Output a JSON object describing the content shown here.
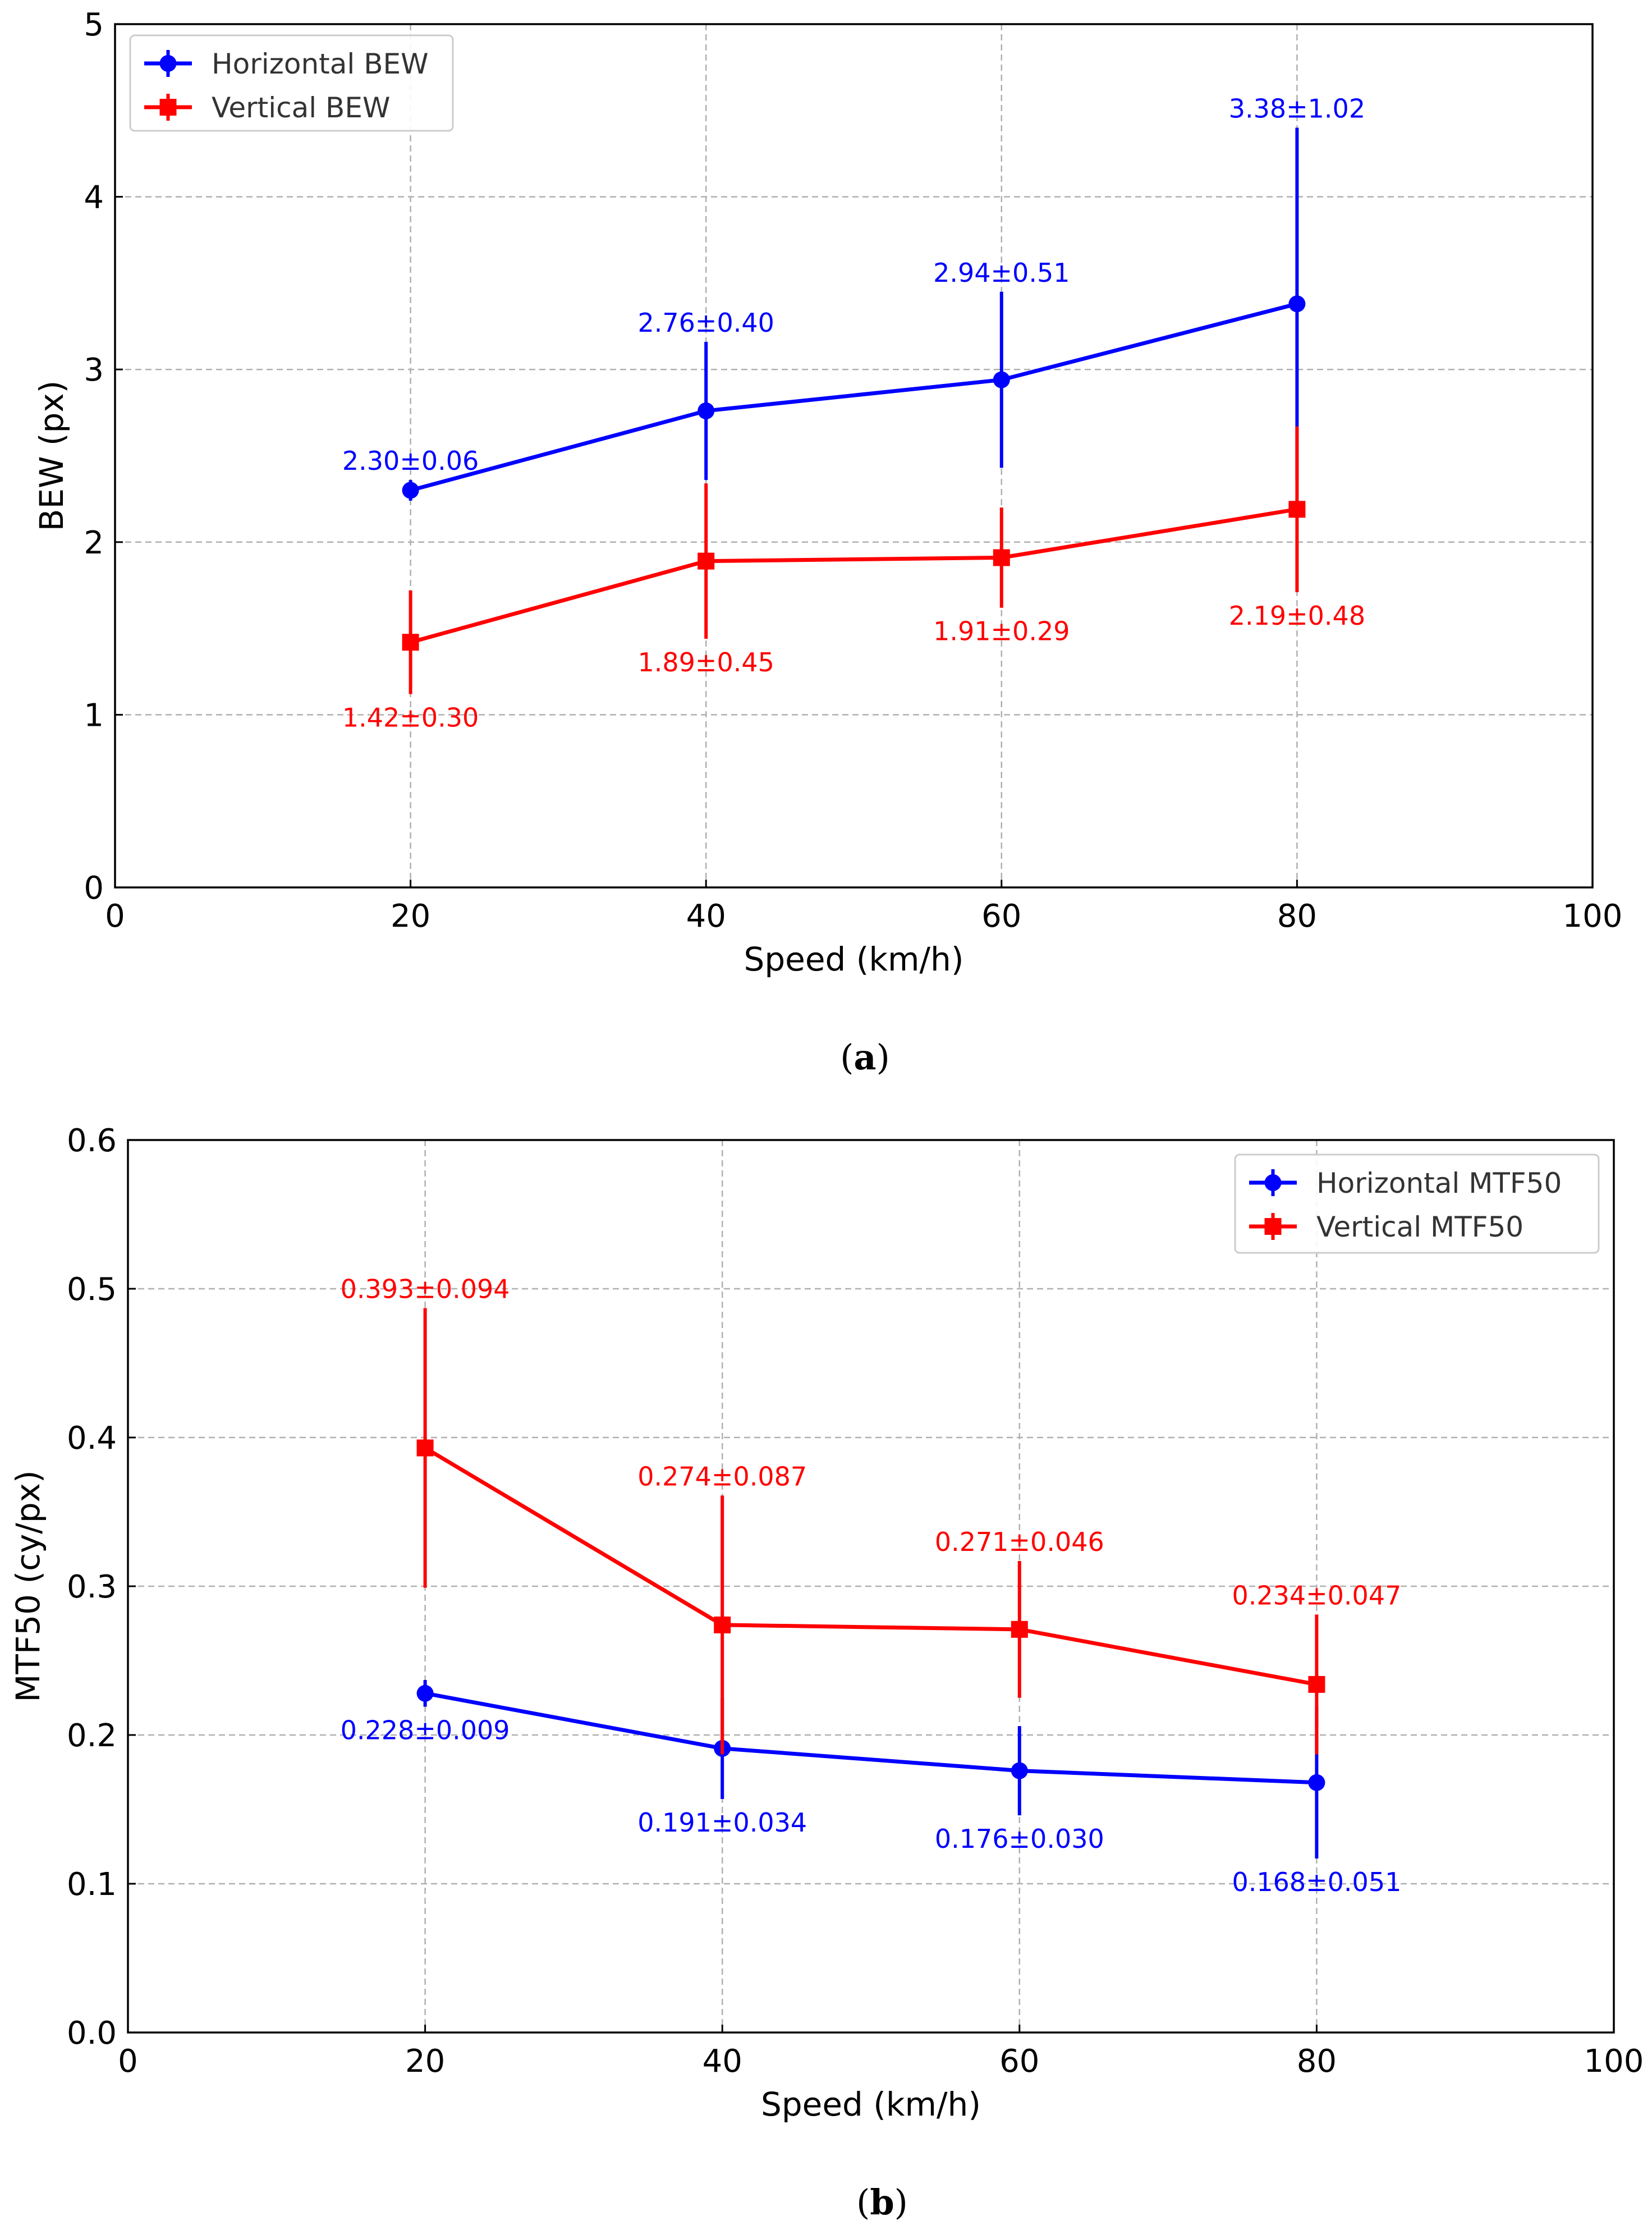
{
  "colors": {
    "horizontal": "#0000ff",
    "vertical": "#ff0000",
    "axis": "#000000",
    "grid": "#b0b0b0"
  },
  "chart_data": [
    {
      "id": "a",
      "type": "line",
      "caption": "(a)",
      "caption_letter": "a",
      "title": "",
      "xlabel": "Speed (km/h)",
      "ylabel": "BEW (px)",
      "xlim": [
        0,
        100
      ],
      "ylim": [
        0,
        5
      ],
      "xticks": [
        0,
        20,
        40,
        60,
        80,
        100
      ],
      "xtick_labels": [
        "0",
        "20",
        "40",
        "60",
        "80",
        "100"
      ],
      "yticks": [
        0,
        1,
        2,
        3,
        4,
        5
      ],
      "ytick_labels": [
        "0",
        "1",
        "2",
        "3",
        "4",
        "5"
      ],
      "grid": true,
      "legend": {
        "position": "top-left"
      },
      "x": [
        20,
        40,
        60,
        80
      ],
      "series": [
        {
          "name": "Horizontal BEW",
          "color": "#0000ff",
          "marker": "circle",
          "values": [
            2.3,
            2.76,
            2.94,
            3.38
          ],
          "errors": [
            0.06,
            0.4,
            0.51,
            1.02
          ],
          "labels": [
            "2.30±0.06",
            "2.76±0.40",
            "2.94±0.51",
            "3.38±1.02"
          ],
          "label_side": "above"
        },
        {
          "name": "Vertical BEW",
          "color": "#ff0000",
          "marker": "square",
          "values": [
            1.42,
            1.89,
            1.91,
            2.19
          ],
          "errors": [
            0.3,
            0.45,
            0.29,
            0.48
          ],
          "labels": [
            "1.42±0.30",
            "1.89±0.45",
            "1.91±0.29",
            "2.19±0.48"
          ],
          "label_side": "below"
        }
      ]
    },
    {
      "id": "b",
      "type": "line",
      "caption": "(b)",
      "caption_letter": "b",
      "title": "",
      "xlabel": "Speed (km/h)",
      "ylabel": "MTF50 (cy/px)",
      "xlim": [
        0,
        100
      ],
      "ylim": [
        0,
        0.6
      ],
      "xticks": [
        0,
        20,
        40,
        60,
        80,
        100
      ],
      "xtick_labels": [
        "0",
        "20",
        "40",
        "60",
        "80",
        "100"
      ],
      "yticks": [
        0,
        0.1,
        0.2,
        0.3,
        0.4,
        0.5,
        0.6
      ],
      "ytick_labels": [
        "0.0",
        "0.1",
        "0.2",
        "0.3",
        "0.4",
        "0.5",
        "0.6"
      ],
      "grid": true,
      "legend": {
        "position": "top-right"
      },
      "x": [
        20,
        40,
        60,
        80
      ],
      "series": [
        {
          "name": "Horizontal MTF50",
          "color": "#0000ff",
          "marker": "circle",
          "values": [
            0.228,
            0.191,
            0.176,
            0.168
          ],
          "errors": [
            0.009,
            0.034,
            0.03,
            0.051
          ],
          "labels": [
            "0.228±0.009",
            "0.191±0.034",
            "0.176±0.030",
            "0.168±0.051"
          ],
          "label_side": "below"
        },
        {
          "name": "Vertical MTF50",
          "color": "#ff0000",
          "marker": "square",
          "values": [
            0.393,
            0.274,
            0.271,
            0.234
          ],
          "errors": [
            0.094,
            0.087,
            0.046,
            0.047
          ],
          "labels": [
            "0.393±0.094",
            "0.274±0.087",
            "0.271±0.046",
            "0.234±0.047"
          ],
          "label_side": "above"
        }
      ]
    }
  ]
}
